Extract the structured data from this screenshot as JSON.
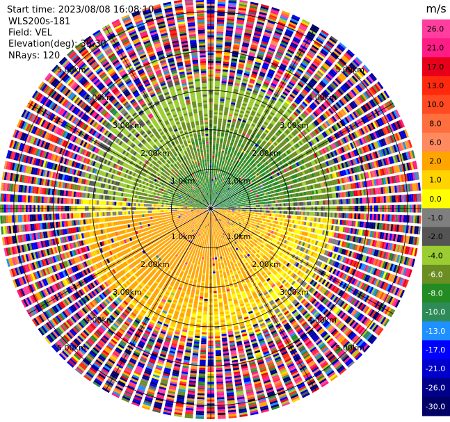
{
  "header": {
    "start_time": "Start time: 2023/08/08 16:08:10",
    "instrument": "WLS200s-181",
    "field": "Field: VEL",
    "elevation": "Elevation(deg): 35.30",
    "nrays": "NRays: 120"
  },
  "chart_data": {
    "type": "heatmap",
    "projection": "polar (PPI scan)",
    "range_rings": [
      {
        "value": 1.0,
        "label": "1.0km"
      },
      {
        "value": 2.0,
        "label": "2.00km"
      },
      {
        "value": 3.0,
        "label": "3.00km"
      },
      {
        "value": 4.0,
        "label": "4.00km"
      },
      {
        "value": 5.0,
        "label": "5.00km"
      }
    ],
    "range_unit": "km",
    "max_range": 5.35,
    "n_rays": 120,
    "colorbar": {
      "unit": "m/s",
      "ticks": [
        "26.0",
        "21.0",
        "17.0",
        "13.0",
        "10.0",
        "8.0",
        "6.0",
        "2.0",
        "1.0",
        "0.0",
        "-1.0",
        "-2.0",
        "-4.0",
        "-6.0",
        "-8.0",
        "-10.0",
        "-13.0",
        "-17.0",
        "-21.0",
        "-26.0",
        "-30.0"
      ],
      "bins": [
        {
          "min": 26,
          "max": 30,
          "color": "#ff3ea0"
        },
        {
          "min": 21,
          "max": 26,
          "color": "#ff1c86"
        },
        {
          "min": 17,
          "max": 21,
          "color": "#e8001a"
        },
        {
          "min": 13,
          "max": 17,
          "color": "#ff2a0e"
        },
        {
          "min": 10,
          "max": 13,
          "color": "#ff4a22"
        },
        {
          "min": 8,
          "max": 10,
          "color": "#ff6f3e"
        },
        {
          "min": 6,
          "max": 8,
          "color": "#ff8a60"
        },
        {
          "min": 2,
          "max": 6,
          "color": "#ffa500"
        },
        {
          "min": 1,
          "max": 2,
          "color": "#ffd300"
        },
        {
          "min": 0,
          "max": 1,
          "color": "#ffff00"
        },
        {
          "min": -1,
          "max": 0,
          "color": "#7f7f7f"
        },
        {
          "min": -2,
          "max": -1,
          "color": "#545454"
        },
        {
          "min": -4,
          "max": -2,
          "color": "#9acd32"
        },
        {
          "min": -6,
          "max": -4,
          "color": "#6b8e23"
        },
        {
          "min": -8,
          "max": -6,
          "color": "#228b22"
        },
        {
          "min": -10,
          "max": -8,
          "color": "#2e8b57"
        },
        {
          "min": -13,
          "max": -10,
          "color": "#1e90ff"
        },
        {
          "min": -17,
          "max": -13,
          "color": "#0000ff"
        },
        {
          "min": -21,
          "max": -17,
          "color": "#0000cd"
        },
        {
          "min": -26,
          "max": -21,
          "color": "#00008b"
        },
        {
          "min": -30,
          "max": -26,
          "color": "#000066"
        }
      ]
    },
    "field_description": "Radial velocity; near-range yields negative (green) north, positive (yellow/orange) south; beyond ~3 km, noise spans full scale",
    "radial_profile": [
      {
        "range_km_max": 1.0,
        "north_vel": -8,
        "south_vel": 4
      },
      {
        "range_km_max": 2.0,
        "north_vel": -6,
        "south_vel": 3
      },
      {
        "range_km_max": 3.0,
        "north_vel": -3,
        "south_vel": 1
      },
      {
        "range_km_max": 5.35,
        "north_vel": "noise",
        "south_vel": "noise"
      }
    ]
  }
}
